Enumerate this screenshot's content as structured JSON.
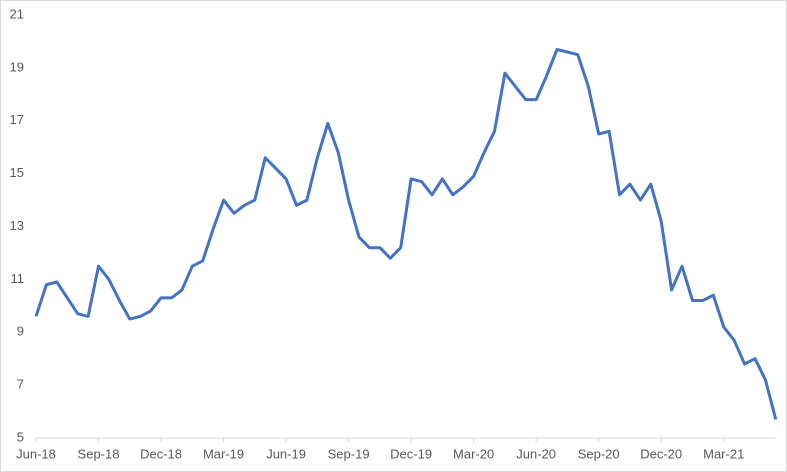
{
  "chart_data": {
    "type": "line",
    "color": "#4472c4",
    "categories": [
      "Jun-18",
      null,
      null,
      null,
      null,
      null,
      "Sep-18",
      null,
      null,
      null,
      null,
      null,
      "Dec-18",
      null,
      null,
      null,
      null,
      null,
      "Mar-19",
      null,
      null,
      null,
      null,
      null,
      "Jun-19",
      null,
      null,
      null,
      null,
      null,
      "Sep-19",
      null,
      null,
      null,
      null,
      null,
      "Dec-19",
      null,
      null,
      null,
      null,
      null,
      "Mar-20",
      null,
      null,
      null,
      null,
      null,
      "Jun-20",
      null,
      null,
      null,
      null,
      null,
      "Sep-20",
      null,
      null,
      null,
      null,
      null,
      "Dec-20",
      null,
      null,
      null,
      null,
      null,
      "Mar-21",
      null,
      null,
      null,
      null,
      null
    ],
    "values": [
      9.6,
      10.8,
      10.9,
      10.3,
      9.7,
      9.6,
      11.5,
      11.0,
      10.2,
      9.5,
      9.6,
      9.8,
      10.3,
      10.3,
      10.6,
      11.5,
      11.7,
      12.9,
      14.0,
      13.5,
      13.8,
      14.0,
      15.6,
      15.2,
      14.8,
      13.8,
      14.0,
      15.6,
      16.9,
      15.8,
      14.0,
      12.6,
      12.2,
      12.2,
      11.8,
      12.2,
      14.8,
      14.7,
      14.2,
      14.8,
      14.2,
      14.5,
      14.9,
      15.8,
      16.6,
      18.8,
      18.3,
      17.8,
      17.8,
      18.7,
      19.7,
      19.6,
      19.5,
      18.3,
      16.5,
      16.6,
      14.2,
      14.6,
      14.0,
      14.6,
      13.2,
      10.6,
      11.5,
      10.2,
      10.2,
      10.4,
      9.2,
      8.7,
      7.8,
      8.0,
      7.2,
      5.7
    ],
    "ylim": [
      5,
      21
    ],
    "yticks": [
      5,
      7,
      9,
      11,
      13,
      15,
      17,
      19,
      21
    ],
    "grid": false
  }
}
